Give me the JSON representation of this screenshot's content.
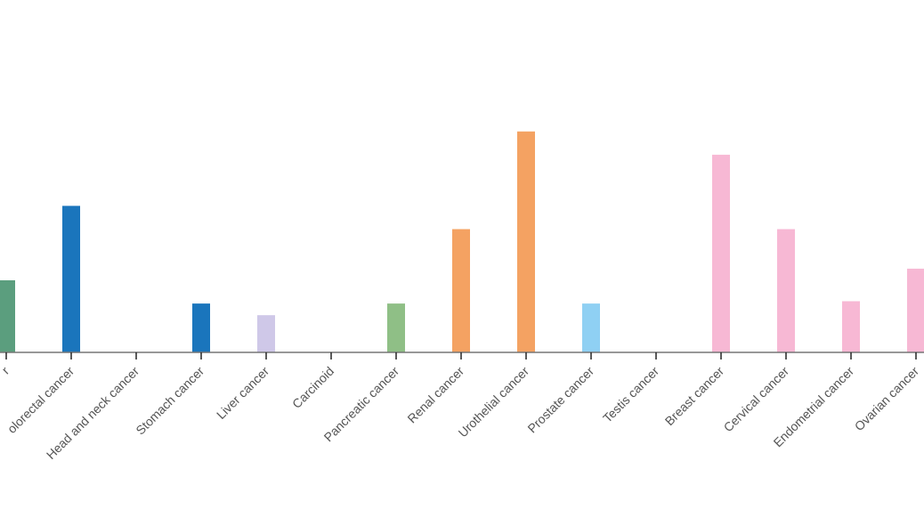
{
  "chart_data": {
    "type": "bar",
    "categories": [
      "Lung cancer",
      "Colorectal cancer",
      "Head and neck cancer",
      "Stomach cancer",
      "Liver cancer",
      "Carcinoid",
      "Pancreatic cancer",
      "Renal cancer",
      "Urothelial cancer",
      "Prostate cancer",
      "Testis cancer",
      "Breast cancer",
      "Cervical cancer",
      "Endometrial cancer",
      "Ovarian cancer"
    ],
    "visible_labels": [
      "r",
      "olorectal cancer",
      "Head and neck cancer",
      "Stomach cancer",
      "Liver cancer",
      "Carcinoid",
      "Pancreatic cancer",
      "Renal cancer",
      "Urothelial cancer",
      "Prostate cancer",
      "Testis cancer",
      "Breast cancer",
      "Cervical cancer",
      "Endometrial cancer",
      "Ovarian cancer"
    ],
    "values": [
      3.1,
      6.3,
      0,
      2.1,
      1.6,
      0,
      2.1,
      5.3,
      9.5,
      2.1,
      0,
      8.5,
      5.3,
      2.2,
      3.6
    ],
    "colors": [
      "#5b9e7e",
      "#1a75bc",
      "#1a75bc",
      "#1a75bc",
      "#cfc8e8",
      "#cfc8e8",
      "#8fbf86",
      "#f4a262",
      "#f4a262",
      "#8fd0f3",
      "#8fd0f3",
      "#f7b8d4",
      "#f7b8d4",
      "#f7b8d4",
      "#f7b8d4"
    ],
    "ylim": [
      0,
      15
    ],
    "title": "",
    "xlabel": "",
    "ylabel": "",
    "grid": false
  }
}
